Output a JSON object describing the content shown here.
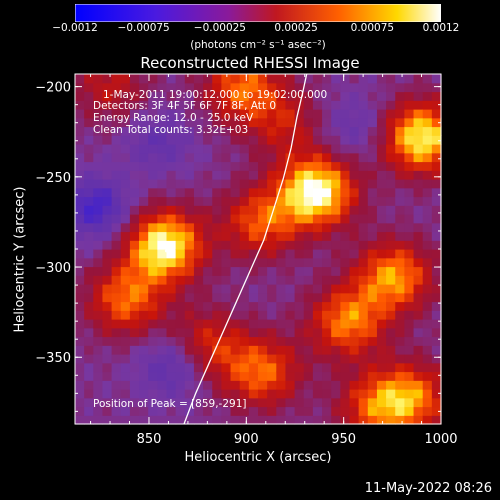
{
  "colorbar": {
    "ticks": [
      "-0.0012",
      "-0.00075",
      "-0.00025",
      "0.00025",
      "0.00075",
      "0.0012"
    ],
    "range": [
      -0.0012,
      0.0012
    ],
    "unit_label": "(photons cm⁻² s⁻¹ asec⁻²)"
  },
  "annotations": {
    "time": "1-May-2011 19:00:12.000 to 19:02:00.000",
    "detectors": "Detectors: 3F 4F 5F 6F 7F 8F, Att 0",
    "energy": "Energy Range: 12.0 - 25.0 keV",
    "clean": "Clean     Total counts: 3.32E+03",
    "peak": "Position of Peak = [859,-291]"
  },
  "timestamp": "11-May-2022 08:26",
  "colors": {
    "background": "#000000",
    "text": "#ffffff",
    "limb": "#ffffff"
  },
  "chart_data": {
    "type": "heatmap",
    "title": "Reconstructed RHESSI Image",
    "xlabel": "Heliocentric X (arcsec)",
    "ylabel": "Heliocentric Y (arcsec)",
    "xlim": [
      812,
      1000
    ],
    "ylim": [
      -387,
      -193
    ],
    "xticks": [
      850,
      900,
      950,
      1000
    ],
    "yticks": [
      -200,
      -250,
      -300,
      -350
    ],
    "colorscale": "blue-purple-red-yellow-white (diverging)",
    "peak": [
      859,
      -291
    ],
    "limb_curve_x": [
      868,
      874,
      881,
      888,
      895,
      902,
      909,
      914,
      919,
      923,
      926,
      929,
      931
    ],
    "limb_curve_y": [
      -387,
      -370,
      -353,
      -336,
      -319,
      -302,
      -285,
      -268,
      -251,
      -234,
      -217,
      -203,
      -193
    ],
    "bright_sources": [
      {
        "x": 858,
        "y": -288,
        "level": 0.95
      },
      {
        "x": 936,
        "y": -258,
        "level": 0.98
      },
      {
        "x": 990,
        "y": -228,
        "level": 0.9
      },
      {
        "x": 907,
        "y": -275,
        "level": 0.55
      },
      {
        "x": 838,
        "y": -318,
        "level": 0.6
      },
      {
        "x": 880,
        "y": -343,
        "level": 0.45
      },
      {
        "x": 908,
        "y": -358,
        "level": 0.6
      },
      {
        "x": 952,
        "y": -330,
        "level": 0.65
      },
      {
        "x": 976,
        "y": -305,
        "level": 0.7
      },
      {
        "x": 985,
        "y": -372,
        "level": 0.6
      },
      {
        "x": 966,
        "y": -378,
        "level": 0.5
      },
      {
        "x": 830,
        "y": -200,
        "level": 0.35
      },
      {
        "x": 898,
        "y": -200,
        "level": 0.6
      },
      {
        "x": 920,
        "y": -220,
        "level": 0.35
      }
    ],
    "dark_sources": [
      {
        "x": 823,
        "y": -267,
        "level": -0.55
      },
      {
        "x": 862,
        "y": -355,
        "level": -0.4
      },
      {
        "x": 855,
        "y": -230,
        "level": -0.3
      },
      {
        "x": 955,
        "y": -222,
        "level": -0.25
      }
    ]
  }
}
